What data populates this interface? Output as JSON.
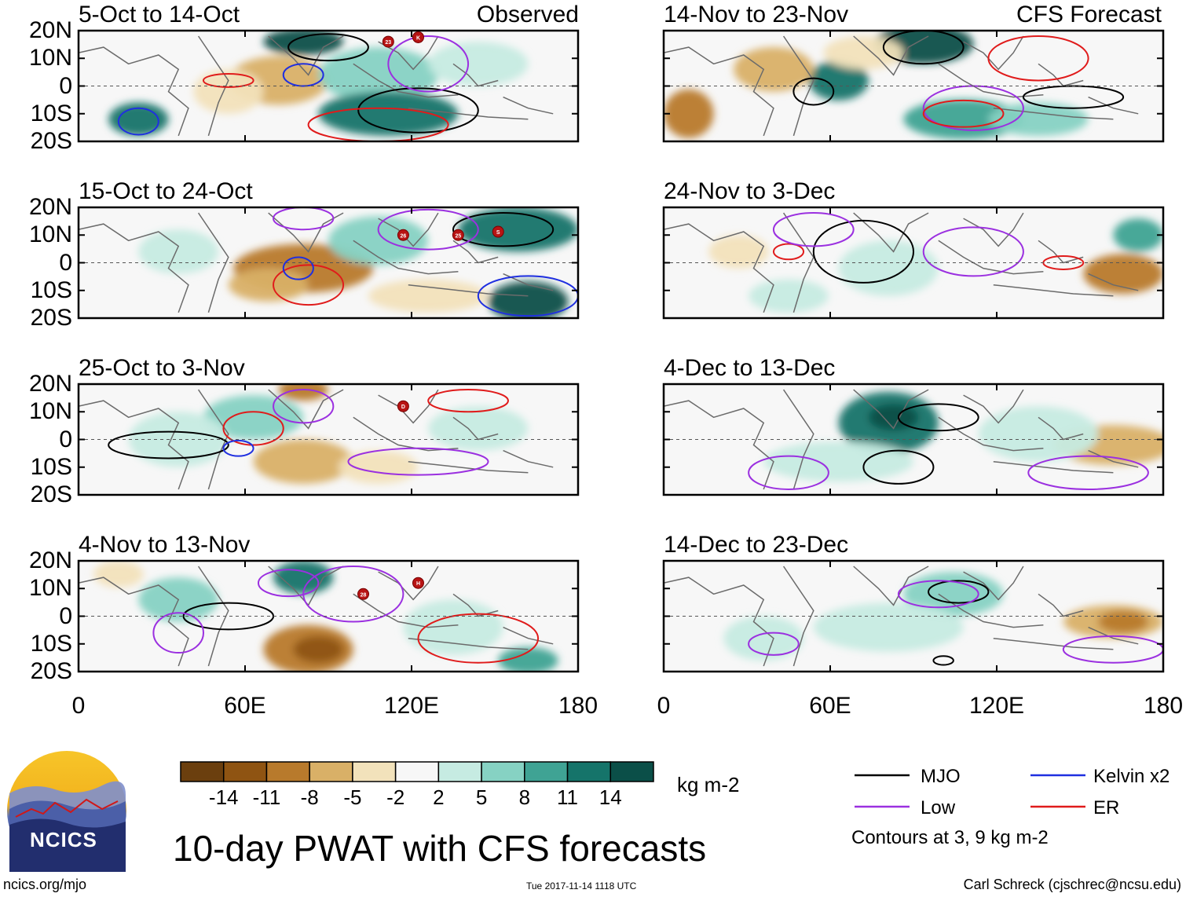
{
  "header": {
    "left_label": "Observed",
    "right_label": "CFS Forecast"
  },
  "panels": {
    "left": [
      {
        "title": "5-Oct to 14-Oct",
        "storms": [
          "23",
          "K"
        ]
      },
      {
        "title": "15-Oct to 24-Oct",
        "storms": [
          "26",
          "25",
          "S"
        ]
      },
      {
        "title": "25-Oct to 3-Nov",
        "storms": [
          "D"
        ]
      },
      {
        "title": "4-Nov to 13-Nov",
        "storms": [
          "28",
          "H"
        ]
      }
    ],
    "right": [
      {
        "title": "14-Nov to 23-Nov"
      },
      {
        "title": "24-Nov to 3-Dec"
      },
      {
        "title": "4-Dec to 13-Dec"
      },
      {
        "title": "14-Dec to 23-Dec"
      }
    ]
  },
  "axes": {
    "lat_ticks": [
      "20N",
      "10N",
      "0",
      "10S",
      "20S"
    ],
    "lon_ticks": [
      "0",
      "60E",
      "120E",
      "180"
    ]
  },
  "colorbar": {
    "colors": [
      "#6b3f0e",
      "#8f5412",
      "#b87a2c",
      "#d9b067",
      "#f2e2bb",
      "#f7f7f7",
      "#c6ebe2",
      "#86d2c3",
      "#3fa394",
      "#15746a",
      "#0b4f48"
    ],
    "labels": [
      "-14",
      "-11",
      "-8",
      "-5",
      "-2",
      "2",
      "5",
      "8",
      "11",
      "14"
    ],
    "unit": "kg m-2"
  },
  "legend": {
    "items": [
      {
        "label": "MJO",
        "color": "#000000"
      },
      {
        "label": "Kelvin x2",
        "color": "#1f2fe0"
      },
      {
        "label": "Low",
        "color": "#9b30e0"
      },
      {
        "label": "ER",
        "color": "#e01b1b"
      }
    ],
    "note": "Contours at 3, 9 kg m-2"
  },
  "logo": {
    "text": "NCICS"
  },
  "footer": {
    "title": "10-day PWAT with CFS forecasts",
    "url": "ncics.org/mjo",
    "timestamp": "Tue 2017-11-14 1118 UTC",
    "author": "Carl Schreck (cjschrec@ncsu.edu)"
  }
}
